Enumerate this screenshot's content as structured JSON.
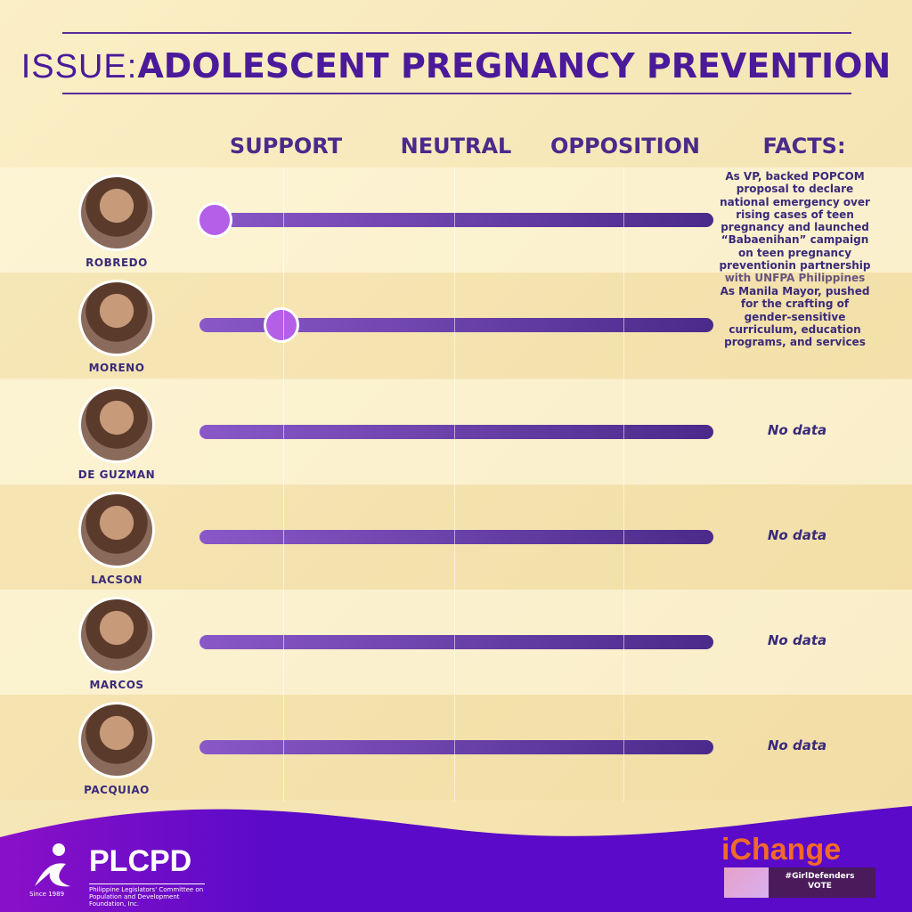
{
  "header": {
    "issue_label": "ISSUE:",
    "issue_title": "ADOLESCENT PREGNANCY PREVENTION"
  },
  "columns": {
    "support": "SUPPORT",
    "neutral": "NEUTRAL",
    "opposition": "OPPOSITION",
    "facts": "FACTS:"
  },
  "candidates": [
    {
      "name": "ROBREDO",
      "stance_position": 0.03,
      "fact": "As VP, backed POPCOM proposal to declare national emergency over rising cases of teen pregnancy and launched “Babaenihan” campaign on teen pregnancy preventionin partnership with UNFPA Philippines"
    },
    {
      "name": "MORENO",
      "stance_position": 0.16,
      "fact": "As Manila Mayor, pushed for the crafting of gender-sensitive curriculum, education programs, and services"
    },
    {
      "name": "DE GUZMAN",
      "stance_position": null,
      "fact": "No data"
    },
    {
      "name": "LACSON",
      "stance_position": null,
      "fact": "No data"
    },
    {
      "name": "MARCOS",
      "stance_position": null,
      "fact": "No data"
    },
    {
      "name": "PACQUIAO",
      "stance_position": null,
      "fact": "No data"
    }
  ],
  "footer": {
    "org": "PLCPD",
    "org_full": "Philippine Legislators' Committee on Population and Development Foundation, Inc.",
    "since": "Since 1989",
    "campaign": "iChange",
    "hashtag": "#GirlDefenders",
    "hashtag_sub": "VOTE"
  },
  "colors": {
    "accent": "#4a1a9a",
    "knob": "#b45fe8",
    "footer": "#5a0ac8"
  }
}
